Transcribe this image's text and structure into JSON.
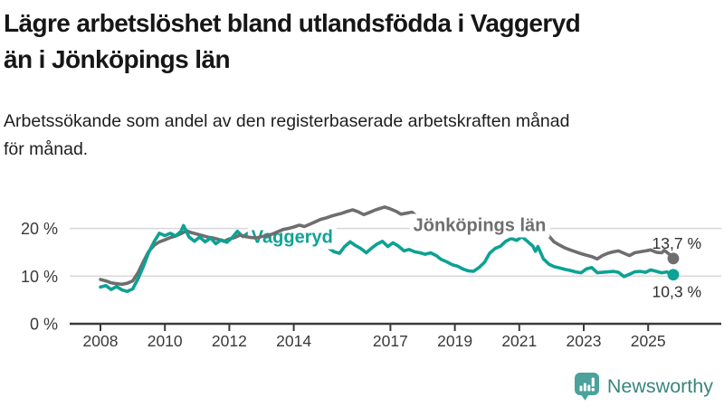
{
  "header": {
    "title_lines": [
      "Lägre arbetslöshet bland utlandsfödda i Vaggeryd",
      "än i Jönköpings län"
    ],
    "subtitle_lines": [
      "Arbetssökande som andel av den registerbaserade arbetskraften månad",
      "för månad."
    ]
  },
  "branding": {
    "logo_text": "Newsworthy",
    "logo_icon": "speech-bubble-bar-chart-exclamation-icon",
    "logo_text_color": "#38867e",
    "logo_icon_color": "#4ba29a"
  },
  "colors": {
    "vaggeryd_line": "#0ca294",
    "jonkoping_line": "#6e6e6e",
    "grid": "#d8d8d8",
    "axis": "#3a3a3a",
    "tick_text": "#3a3a3a",
    "value_label_text": "#2e2e2e",
    "background": "#ffffff"
  },
  "chart_data": {
    "type": "line",
    "title": "Lägre arbetslöshet bland utlandsfödda i Vaggeryd än i Jönköpings län",
    "subtitle": "Arbetssökande som andel av den registerbaserade arbetskraften månad för månad.",
    "unit": "%",
    "grid": true,
    "x_axis": {
      "tick_labels": [
        "2008",
        "2010",
        "2012",
        "2014",
        "2017",
        "2019",
        "2021",
        "2023",
        "2025"
      ],
      "tick_values": [
        2008,
        2010,
        2012,
        2014,
        2017,
        2019,
        2021,
        2023,
        2025
      ],
      "range_years": [
        2008.0,
        2025.78
      ]
    },
    "y_axis": {
      "tick_labels": [
        "0 %",
        "10 %",
        "20 %"
      ],
      "tick_values": [
        0,
        10,
        20
      ],
      "range": [
        0,
        26
      ]
    },
    "series": [
      {
        "name": "Jönköpings län",
        "color": "#6e6e6e",
        "end_label": "13,7 %",
        "end_value": 13.7,
        "label_anchor": {
          "year": 2019.77,
          "value": 20.6
        },
        "points": [
          [
            2008.0,
            9.3
          ],
          [
            2008.17,
            9.0
          ],
          [
            2008.33,
            8.6
          ],
          [
            2008.5,
            8.4
          ],
          [
            2008.67,
            8.3
          ],
          [
            2008.83,
            8.5
          ],
          [
            2009.0,
            9.0
          ],
          [
            2009.17,
            10.8
          ],
          [
            2009.33,
            13.0
          ],
          [
            2009.5,
            15.2
          ],
          [
            2009.67,
            16.5
          ],
          [
            2009.83,
            17.2
          ],
          [
            2010.0,
            17.6
          ],
          [
            2010.17,
            18.1
          ],
          [
            2010.33,
            18.4
          ],
          [
            2010.5,
            18.9
          ],
          [
            2010.67,
            19.5
          ],
          [
            2010.83,
            19.1
          ],
          [
            2011.0,
            18.8
          ],
          [
            2011.17,
            18.5
          ],
          [
            2011.33,
            18.2
          ],
          [
            2011.5,
            18.0
          ],
          [
            2011.67,
            17.7
          ],
          [
            2011.83,
            17.3
          ],
          [
            2012.0,
            17.8
          ],
          [
            2012.17,
            18.1
          ],
          [
            2012.33,
            18.6
          ],
          [
            2012.5,
            18.3
          ],
          [
            2012.67,
            18.1
          ],
          [
            2012.83,
            18.0
          ],
          [
            2013.0,
            18.3
          ],
          [
            2013.17,
            18.5
          ],
          [
            2013.33,
            18.8
          ],
          [
            2013.5,
            19.3
          ],
          [
            2013.67,
            19.8
          ],
          [
            2013.83,
            20.0
          ],
          [
            2014.0,
            20.3
          ],
          [
            2014.17,
            20.7
          ],
          [
            2014.33,
            20.4
          ],
          [
            2014.5,
            20.9
          ],
          [
            2014.67,
            21.4
          ],
          [
            2014.83,
            21.9
          ],
          [
            2015.0,
            22.2
          ],
          [
            2015.17,
            22.6
          ],
          [
            2015.33,
            22.9
          ],
          [
            2015.5,
            23.2
          ],
          [
            2015.67,
            23.6
          ],
          [
            2015.83,
            23.9
          ],
          [
            2016.0,
            23.5
          ],
          [
            2016.17,
            22.9
          ],
          [
            2016.33,
            23.3
          ],
          [
            2016.5,
            23.8
          ],
          [
            2016.67,
            24.2
          ],
          [
            2016.83,
            24.5
          ],
          [
            2017.0,
            24.1
          ],
          [
            2017.17,
            23.6
          ],
          [
            2017.33,
            23.0
          ],
          [
            2017.5,
            23.2
          ],
          [
            2017.67,
            23.4
          ],
          [
            2017.83,
            22.5
          ],
          [
            2018.0,
            22.0
          ],
          [
            2018.33,
            21.4
          ],
          [
            2018.67,
            20.8
          ],
          [
            2019.0,
            20.2
          ],
          [
            2019.33,
            19.8
          ],
          [
            2019.67,
            19.6
          ],
          [
            2020.0,
            20.2
          ],
          [
            2020.33,
            20.9
          ],
          [
            2020.67,
            21.3
          ],
          [
            2021.0,
            20.8
          ],
          [
            2021.33,
            20.1
          ],
          [
            2021.67,
            19.3
          ],
          [
            2021.92,
            18.4
          ],
          [
            2022.08,
            17.2
          ],
          [
            2022.25,
            16.5
          ],
          [
            2022.42,
            15.9
          ],
          [
            2022.58,
            15.5
          ],
          [
            2022.75,
            15.1
          ],
          [
            2022.92,
            14.7
          ],
          [
            2023.08,
            14.4
          ],
          [
            2023.25,
            14.1
          ],
          [
            2023.42,
            13.6
          ],
          [
            2023.58,
            14.3
          ],
          [
            2023.75,
            14.8
          ],
          [
            2023.92,
            15.1
          ],
          [
            2024.08,
            15.3
          ],
          [
            2024.25,
            14.8
          ],
          [
            2024.42,
            14.3
          ],
          [
            2024.58,
            14.9
          ],
          [
            2024.75,
            15.1
          ],
          [
            2024.92,
            15.3
          ],
          [
            2025.08,
            15.5
          ],
          [
            2025.25,
            15.0
          ],
          [
            2025.42,
            14.9
          ],
          [
            2025.5,
            15.4
          ],
          [
            2025.58,
            15.0
          ],
          [
            2025.67,
            14.5
          ],
          [
            2025.78,
            13.7
          ]
        ]
      },
      {
        "name": "Vaggeryd",
        "color": "#0ca294",
        "end_label": "10,3 %",
        "end_value": 10.3,
        "label_anchor": {
          "year": 2013.95,
          "value": 18.3
        },
        "points": [
          [
            2008.0,
            7.7
          ],
          [
            2008.17,
            8.0
          ],
          [
            2008.33,
            7.2
          ],
          [
            2008.5,
            7.8
          ],
          [
            2008.67,
            7.1
          ],
          [
            2008.83,
            6.8
          ],
          [
            2009.0,
            7.3
          ],
          [
            2009.17,
            9.5
          ],
          [
            2009.33,
            12.0
          ],
          [
            2009.5,
            15.0
          ],
          [
            2009.67,
            17.3
          ],
          [
            2009.83,
            19.0
          ],
          [
            2010.0,
            18.5
          ],
          [
            2010.17,
            19.0
          ],
          [
            2010.33,
            18.4
          ],
          [
            2010.5,
            19.4
          ],
          [
            2010.58,
            20.6
          ],
          [
            2010.75,
            18.2
          ],
          [
            2010.92,
            17.3
          ],
          [
            2011.08,
            18.2
          ],
          [
            2011.25,
            17.2
          ],
          [
            2011.42,
            18.0
          ],
          [
            2011.58,
            16.8
          ],
          [
            2011.75,
            17.6
          ],
          [
            2011.92,
            17.1
          ],
          [
            2012.08,
            18.0
          ],
          [
            2012.25,
            19.4
          ],
          [
            2012.42,
            18.3
          ],
          [
            2012.58,
            19.0
          ],
          [
            2012.75,
            18.3
          ],
          [
            2013.0,
            18.5
          ],
          [
            2013.25,
            17.9
          ],
          [
            2013.5,
            18.2
          ],
          [
            2013.75,
            17.6
          ],
          [
            2014.0,
            17.9
          ],
          [
            2014.25,
            17.2
          ],
          [
            2014.5,
            17.6
          ],
          [
            2014.75,
            16.9
          ],
          [
            2015.0,
            16.3
          ],
          [
            2015.25,
            15.1
          ],
          [
            2015.42,
            14.8
          ],
          [
            2015.58,
            16.2
          ],
          [
            2015.75,
            17.2
          ],
          [
            2015.92,
            16.4
          ],
          [
            2016.08,
            15.8
          ],
          [
            2016.25,
            14.9
          ],
          [
            2016.42,
            15.9
          ],
          [
            2016.58,
            16.7
          ],
          [
            2016.75,
            17.3
          ],
          [
            2016.92,
            16.2
          ],
          [
            2017.08,
            17.0
          ],
          [
            2017.25,
            16.3
          ],
          [
            2017.42,
            15.3
          ],
          [
            2017.58,
            15.6
          ],
          [
            2017.75,
            15.1
          ],
          [
            2017.92,
            14.9
          ],
          [
            2018.08,
            14.6
          ],
          [
            2018.25,
            14.9
          ],
          [
            2018.42,
            14.3
          ],
          [
            2018.58,
            13.5
          ],
          [
            2018.75,
            13.0
          ],
          [
            2018.92,
            12.4
          ],
          [
            2019.08,
            12.1
          ],
          [
            2019.25,
            11.5
          ],
          [
            2019.42,
            11.1
          ],
          [
            2019.58,
            11.0
          ],
          [
            2019.75,
            11.8
          ],
          [
            2019.92,
            12.9
          ],
          [
            2020.08,
            14.8
          ],
          [
            2020.25,
            15.8
          ],
          [
            2020.42,
            16.3
          ],
          [
            2020.58,
            17.3
          ],
          [
            2020.75,
            17.9
          ],
          [
            2020.92,
            17.5
          ],
          [
            2021.08,
            18.3
          ],
          [
            2021.25,
            17.3
          ],
          [
            2021.42,
            16.3
          ],
          [
            2021.5,
            15.2
          ],
          [
            2021.58,
            16.2
          ],
          [
            2021.75,
            13.6
          ],
          [
            2021.92,
            12.5
          ],
          [
            2022.08,
            12.0
          ],
          [
            2022.25,
            11.7
          ],
          [
            2022.42,
            11.4
          ],
          [
            2022.58,
            11.2
          ],
          [
            2022.75,
            10.9
          ],
          [
            2022.92,
            10.7
          ],
          [
            2023.08,
            11.5
          ],
          [
            2023.25,
            11.8
          ],
          [
            2023.42,
            10.7
          ],
          [
            2023.58,
            10.8
          ],
          [
            2023.75,
            10.9
          ],
          [
            2023.92,
            11.0
          ],
          [
            2024.08,
            10.8
          ],
          [
            2024.25,
            9.9
          ],
          [
            2024.42,
            10.4
          ],
          [
            2024.58,
            10.9
          ],
          [
            2024.75,
            11.0
          ],
          [
            2024.92,
            10.8
          ],
          [
            2025.08,
            11.3
          ],
          [
            2025.25,
            11.0
          ],
          [
            2025.42,
            10.7
          ],
          [
            2025.58,
            10.9
          ],
          [
            2025.78,
            10.3
          ]
        ]
      }
    ],
    "legend_position": "inline-labels-on-lines"
  }
}
